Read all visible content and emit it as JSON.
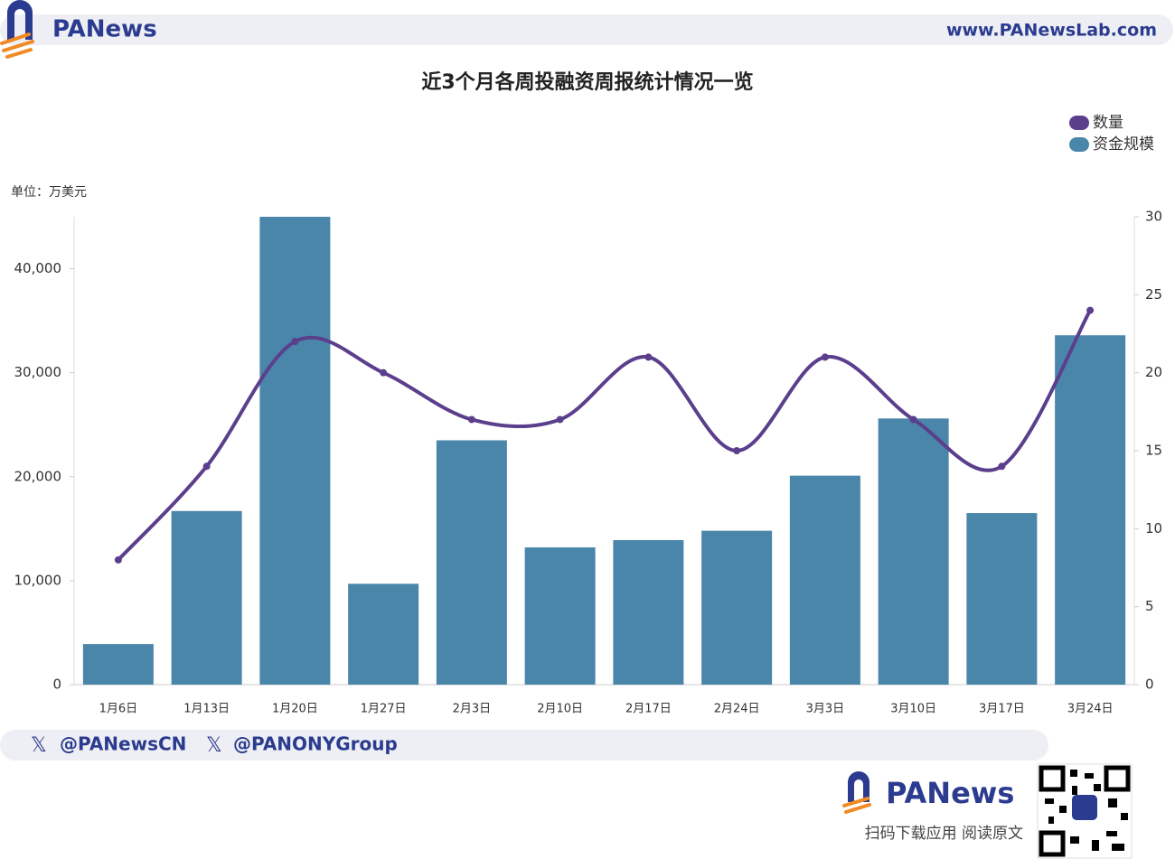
{
  "header": {
    "brand": "PANews",
    "url": "www.PANewsLab.com"
  },
  "chart_data": {
    "type": "bar_line",
    "title": "近3个月各周投融资周报统计情况一览",
    "y_label": "单位：万美元",
    "categories": [
      "1月6日",
      "1月13日",
      "1月20日",
      "1月27日",
      "2月3日",
      "2月10日",
      "2月17日",
      "2月24日",
      "3月3日",
      "3月10日",
      "3月17日",
      "3月24日"
    ],
    "series": [
      {
        "name": "数量",
        "color": "#5b3f8c",
        "type": "line",
        "axis": "y2",
        "values": [
          8,
          14,
          22,
          20,
          17,
          17,
          21,
          15,
          21,
          17,
          14,
          24
        ]
      },
      {
        "name": "资金规模",
        "color": "#4a86aa",
        "type": "bar",
        "values": [
          3900,
          16700,
          45000,
          9700,
          23500,
          13200,
          13900,
          14800,
          20100,
          25600,
          16500,
          33600
        ]
      }
    ],
    "ylim": [
      0,
      45000
    ],
    "yticks": [
      0,
      {
        "value": 10000,
        "label": "10,000"
      },
      {
        "value": 20000,
        "label": "20,000"
      },
      {
        "value": 30000,
        "label": "30,000"
      },
      {
        "value": 40000,
        "label": "40,000"
      }
    ],
    "y2lim": [
      0,
      30
    ],
    "y2ticks": [
      0,
      5,
      10,
      15,
      20,
      25,
      30
    ],
    "legend": "top-right"
  },
  "footer": {
    "handles": [
      "@PANewsCN",
      "@PANONYGroup"
    ],
    "brand": "PANews",
    "cta": "扫码下载应用  阅读原文"
  }
}
